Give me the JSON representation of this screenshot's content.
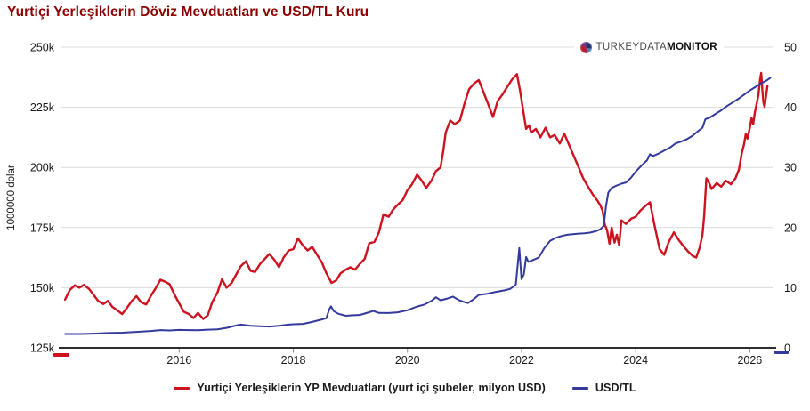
{
  "title": "Yurtiçi Yerleşiklerin Döviz Mevduatları ve USD/TL Kuru",
  "logo": {
    "part1": "TURKEYDATA",
    "part2": "MONITOR"
  },
  "colors": {
    "deposits_line": "#CE121F",
    "usdtl_line": "#333A9C",
    "title_text": "#8B0000",
    "grid": "#DCDCDC",
    "axis_line": "#111111",
    "tick_text": "#1A1A1A",
    "tick_mark": "#8C8C8C"
  },
  "legend": {
    "items": [
      {
        "label": "Yurtiçi Yerleşiklerin YP Mevduatları (yurt içi şubeler, milyon USD)",
        "color_key": "deposits_line"
      },
      {
        "label": "USD/TL",
        "color_key": "usdtl_line"
      }
    ]
  },
  "chart_data": {
    "type": "line",
    "title": "Yurtiçi Yerleşiklerin Döviz Mevduatları ve USD/TL Kuru",
    "y_label_left": "1000000 dolar",
    "y_label_right": "",
    "xlim": [
      2013.92,
      2026.4
    ],
    "ylim_left": [
      125,
      250
    ],
    "ylim_right": [
      0,
      50
    ],
    "x_ticks": [
      2016,
      2018,
      2020,
      2022,
      2024,
      2026
    ],
    "y_ticks_left": [
      125,
      150,
      175,
      200,
      225,
      250
    ],
    "y_tick_labels_left": [
      "125k",
      "150k",
      "175k",
      "200k",
      "225k",
      "250k"
    ],
    "y_ticks_right": [
      0,
      10,
      20,
      30,
      40,
      50
    ],
    "grid": "horizontal",
    "legend_position": "bottom",
    "series": [
      {
        "name": "Yurtiçi Yerleşiklerin YP Mevduatları (yurt içi şubeler, milyon USD)",
        "axis": "left",
        "unit": "k = 1000 million USD",
        "color_key": "deposits_line",
        "points": [
          [
            2014.0,
            145.0
          ],
          [
            2014.08,
            149.0
          ],
          [
            2014.17,
            151.0
          ],
          [
            2014.25,
            150.0
          ],
          [
            2014.33,
            151.2
          ],
          [
            2014.42,
            149.5
          ],
          [
            2014.5,
            147.0
          ],
          [
            2014.58,
            144.5
          ],
          [
            2014.67,
            143.2
          ],
          [
            2014.75,
            144.5
          ],
          [
            2014.83,
            142.0
          ],
          [
            2014.92,
            140.5
          ],
          [
            2015.0,
            139.0
          ],
          [
            2015.08,
            141.5
          ],
          [
            2015.17,
            144.5
          ],
          [
            2015.25,
            146.5
          ],
          [
            2015.33,
            144.0
          ],
          [
            2015.42,
            143.0
          ],
          [
            2015.5,
            146.5
          ],
          [
            2015.58,
            149.5
          ],
          [
            2015.67,
            153.3
          ],
          [
            2015.75,
            152.5
          ],
          [
            2015.83,
            151.5
          ],
          [
            2015.92,
            147.0
          ],
          [
            2016.0,
            143.5
          ],
          [
            2016.08,
            140.0
          ],
          [
            2016.17,
            139.0
          ],
          [
            2016.25,
            137.4
          ],
          [
            2016.33,
            139.5
          ],
          [
            2016.42,
            137.0
          ],
          [
            2016.5,
            138.5
          ],
          [
            2016.58,
            144.0
          ],
          [
            2016.67,
            148.0
          ],
          [
            2016.75,
            153.5
          ],
          [
            2016.83,
            150.0
          ],
          [
            2016.92,
            152.0
          ],
          [
            2017.0,
            155.5
          ],
          [
            2017.08,
            159.0
          ],
          [
            2017.17,
            161.0
          ],
          [
            2017.25,
            157.0
          ],
          [
            2017.33,
            156.5
          ],
          [
            2017.42,
            160.0
          ],
          [
            2017.5,
            162.0
          ],
          [
            2017.58,
            164.0
          ],
          [
            2017.67,
            161.5
          ],
          [
            2017.75,
            158.5
          ],
          [
            2017.83,
            162.5
          ],
          [
            2017.92,
            165.5
          ],
          [
            2018.0,
            166.0
          ],
          [
            2018.08,
            170.5
          ],
          [
            2018.17,
            167.5
          ],
          [
            2018.25,
            165.5
          ],
          [
            2018.33,
            167.0
          ],
          [
            2018.42,
            163.5
          ],
          [
            2018.5,
            160.5
          ],
          [
            2018.58,
            156.0
          ],
          [
            2018.67,
            152.0
          ],
          [
            2018.75,
            153.0
          ],
          [
            2018.83,
            156.0
          ],
          [
            2018.92,
            157.5
          ],
          [
            2019.0,
            158.5
          ],
          [
            2019.08,
            157.5
          ],
          [
            2019.17,
            160.0
          ],
          [
            2019.25,
            162.0
          ],
          [
            2019.33,
            168.5
          ],
          [
            2019.42,
            169.0
          ],
          [
            2019.5,
            173.0
          ],
          [
            2019.58,
            180.5
          ],
          [
            2019.67,
            179.5
          ],
          [
            2019.75,
            182.5
          ],
          [
            2019.83,
            184.5
          ],
          [
            2019.92,
            186.5
          ],
          [
            2020.0,
            190.5
          ],
          [
            2020.08,
            193.0
          ],
          [
            2020.17,
            197.0
          ],
          [
            2020.25,
            194.5
          ],
          [
            2020.33,
            191.5
          ],
          [
            2020.42,
            194.5
          ],
          [
            2020.5,
            198.5
          ],
          [
            2020.58,
            200.0
          ],
          [
            2020.63,
            207.0
          ],
          [
            2020.67,
            214.5
          ],
          [
            2020.75,
            219.5
          ],
          [
            2020.83,
            218.0
          ],
          [
            2020.92,
            219.5
          ],
          [
            2021.0,
            226.5
          ],
          [
            2021.08,
            232.5
          ],
          [
            2021.17,
            235.0
          ],
          [
            2021.25,
            236.3
          ],
          [
            2021.33,
            231.5
          ],
          [
            2021.42,
            226.0
          ],
          [
            2021.5,
            221.0
          ],
          [
            2021.58,
            227.5
          ],
          [
            2021.67,
            230.5
          ],
          [
            2021.75,
            233.5
          ],
          [
            2021.83,
            236.5
          ],
          [
            2021.92,
            238.8
          ],
          [
            2021.98,
            231.0
          ],
          [
            2022.04,
            222.0
          ],
          [
            2022.08,
            216.0
          ],
          [
            2022.13,
            217.5
          ],
          [
            2022.17,
            214.5
          ],
          [
            2022.25,
            216.0
          ],
          [
            2022.33,
            212.5
          ],
          [
            2022.42,
            216.5
          ],
          [
            2022.5,
            212.5
          ],
          [
            2022.58,
            213.5
          ],
          [
            2022.67,
            210.0
          ],
          [
            2022.75,
            214.0
          ],
          [
            2022.83,
            209.5
          ],
          [
            2022.92,
            204.5
          ],
          [
            2023.0,
            200.0
          ],
          [
            2023.08,
            195.5
          ],
          [
            2023.17,
            191.8
          ],
          [
            2023.25,
            188.7
          ],
          [
            2023.33,
            186.2
          ],
          [
            2023.38,
            184.3
          ],
          [
            2023.42,
            182.0
          ],
          [
            2023.46,
            176.2
          ],
          [
            2023.5,
            173.9
          ],
          [
            2023.54,
            168.3
          ],
          [
            2023.58,
            175.0
          ],
          [
            2023.63,
            168.8
          ],
          [
            2023.67,
            172.0
          ],
          [
            2023.71,
            167.6
          ],
          [
            2023.75,
            178.0
          ],
          [
            2023.83,
            176.5
          ],
          [
            2023.92,
            178.7
          ],
          [
            2024.0,
            179.5
          ],
          [
            2024.08,
            182.0
          ],
          [
            2024.17,
            184.0
          ],
          [
            2024.25,
            185.5
          ],
          [
            2024.33,
            176.0
          ],
          [
            2024.42,
            166.0
          ],
          [
            2024.5,
            163.7
          ],
          [
            2024.58,
            169.0
          ],
          [
            2024.67,
            173.0
          ],
          [
            2024.75,
            170.0
          ],
          [
            2024.83,
            167.5
          ],
          [
            2024.92,
            165.0
          ],
          [
            2025.0,
            163.2
          ],
          [
            2025.06,
            162.5
          ],
          [
            2025.12,
            166.5
          ],
          [
            2025.17,
            172.0
          ],
          [
            2025.2,
            180.0
          ],
          [
            2025.24,
            195.5
          ],
          [
            2025.29,
            193.5
          ],
          [
            2025.33,
            191.0
          ],
          [
            2025.42,
            193.5
          ],
          [
            2025.5,
            192.0
          ],
          [
            2025.58,
            194.5
          ],
          [
            2025.67,
            193.0
          ],
          [
            2025.75,
            195.5
          ],
          [
            2025.81,
            199.2
          ],
          [
            2025.86,
            206.0
          ],
          [
            2025.9,
            209.6
          ],
          [
            2025.93,
            214.0
          ],
          [
            2025.96,
            212.0
          ],
          [
            2026.0,
            216.5
          ],
          [
            2026.03,
            220.5
          ],
          [
            2026.06,
            218.0
          ],
          [
            2026.09,
            223.0
          ],
          [
            2026.12,
            226.5
          ],
          [
            2026.15,
            230.0
          ],
          [
            2026.18,
            236.5
          ],
          [
            2026.2,
            239.3
          ],
          [
            2026.22,
            232.0
          ],
          [
            2026.24,
            227.0
          ],
          [
            2026.26,
            225.2
          ],
          [
            2026.29,
            230.5
          ],
          [
            2026.31,
            233.8
          ]
        ]
      },
      {
        "name": "USD/TL",
        "axis": "right",
        "unit": "TL per USD",
        "color_key": "usdtl_line",
        "points": [
          [
            2014.0,
            2.3
          ],
          [
            2014.25,
            2.3
          ],
          [
            2014.5,
            2.35
          ],
          [
            2014.75,
            2.45
          ],
          [
            2015.0,
            2.52
          ],
          [
            2015.25,
            2.65
          ],
          [
            2015.5,
            2.8
          ],
          [
            2015.67,
            2.95
          ],
          [
            2015.83,
            2.88
          ],
          [
            2016.0,
            2.98
          ],
          [
            2016.17,
            2.95
          ],
          [
            2016.33,
            2.92
          ],
          [
            2016.5,
            3.02
          ],
          [
            2016.67,
            3.08
          ],
          [
            2016.83,
            3.32
          ],
          [
            2017.0,
            3.72
          ],
          [
            2017.08,
            3.86
          ],
          [
            2017.25,
            3.66
          ],
          [
            2017.42,
            3.58
          ],
          [
            2017.58,
            3.54
          ],
          [
            2017.75,
            3.66
          ],
          [
            2017.92,
            3.86
          ],
          [
            2018.0,
            3.92
          ],
          [
            2018.17,
            3.98
          ],
          [
            2018.33,
            4.3
          ],
          [
            2018.5,
            4.72
          ],
          [
            2018.58,
            4.92
          ],
          [
            2018.63,
            6.4
          ],
          [
            2018.66,
            6.9
          ],
          [
            2018.71,
            6.1
          ],
          [
            2018.79,
            5.65
          ],
          [
            2018.92,
            5.32
          ],
          [
            2019.0,
            5.38
          ],
          [
            2019.17,
            5.48
          ],
          [
            2019.33,
            5.92
          ],
          [
            2019.4,
            6.12
          ],
          [
            2019.5,
            5.8
          ],
          [
            2019.67,
            5.78
          ],
          [
            2019.83,
            5.9
          ],
          [
            2020.0,
            6.25
          ],
          [
            2020.15,
            6.8
          ],
          [
            2020.3,
            7.2
          ],
          [
            2020.42,
            7.8
          ],
          [
            2020.5,
            8.4
          ],
          [
            2020.58,
            7.9
          ],
          [
            2020.7,
            8.2
          ],
          [
            2020.8,
            8.5
          ],
          [
            2020.9,
            7.95
          ],
          [
            2021.0,
            7.6
          ],
          [
            2021.06,
            7.45
          ],
          [
            2021.15,
            8.0
          ],
          [
            2021.25,
            8.8
          ],
          [
            2021.4,
            9.0
          ],
          [
            2021.55,
            9.3
          ],
          [
            2021.7,
            9.55
          ],
          [
            2021.8,
            9.8
          ],
          [
            2021.9,
            10.5
          ],
          [
            2021.96,
            16.6
          ],
          [
            2022.0,
            11.4
          ],
          [
            2022.04,
            12.2
          ],
          [
            2022.08,
            15.1
          ],
          [
            2022.12,
            14.3
          ],
          [
            2022.2,
            14.6
          ],
          [
            2022.3,
            15.0
          ],
          [
            2022.4,
            16.6
          ],
          [
            2022.5,
            17.8
          ],
          [
            2022.6,
            18.3
          ],
          [
            2022.7,
            18.6
          ],
          [
            2022.8,
            18.8
          ],
          [
            2022.9,
            18.9
          ],
          [
            2023.0,
            19.0
          ],
          [
            2023.1,
            19.05
          ],
          [
            2023.2,
            19.15
          ],
          [
            2023.3,
            19.4
          ],
          [
            2023.38,
            19.7
          ],
          [
            2023.44,
            20.3
          ],
          [
            2023.48,
            23.5
          ],
          [
            2023.52,
            25.8
          ],
          [
            2023.58,
            26.6
          ],
          [
            2023.67,
            27.0
          ],
          [
            2023.75,
            27.3
          ],
          [
            2023.83,
            27.5
          ],
          [
            2023.92,
            28.3
          ],
          [
            2024.0,
            29.3
          ],
          [
            2024.1,
            30.3
          ],
          [
            2024.2,
            31.2
          ],
          [
            2024.25,
            32.2
          ],
          [
            2024.3,
            31.9
          ],
          [
            2024.4,
            32.3
          ],
          [
            2024.5,
            32.8
          ],
          [
            2024.6,
            33.3
          ],
          [
            2024.7,
            34.0
          ],
          [
            2024.8,
            34.3
          ],
          [
            2024.9,
            34.7
          ],
          [
            2025.0,
            35.3
          ],
          [
            2025.1,
            36.1
          ],
          [
            2025.17,
            36.6
          ],
          [
            2025.22,
            38.0
          ],
          [
            2025.3,
            38.3
          ],
          [
            2025.4,
            38.9
          ],
          [
            2025.5,
            39.5
          ],
          [
            2025.6,
            40.2
          ],
          [
            2025.7,
            40.8
          ],
          [
            2025.8,
            41.4
          ],
          [
            2025.9,
            42.1
          ],
          [
            2026.0,
            42.8
          ],
          [
            2026.1,
            43.4
          ],
          [
            2026.2,
            44.0
          ],
          [
            2026.3,
            44.5
          ],
          [
            2026.36,
            44.9
          ]
        ]
      }
    ]
  }
}
